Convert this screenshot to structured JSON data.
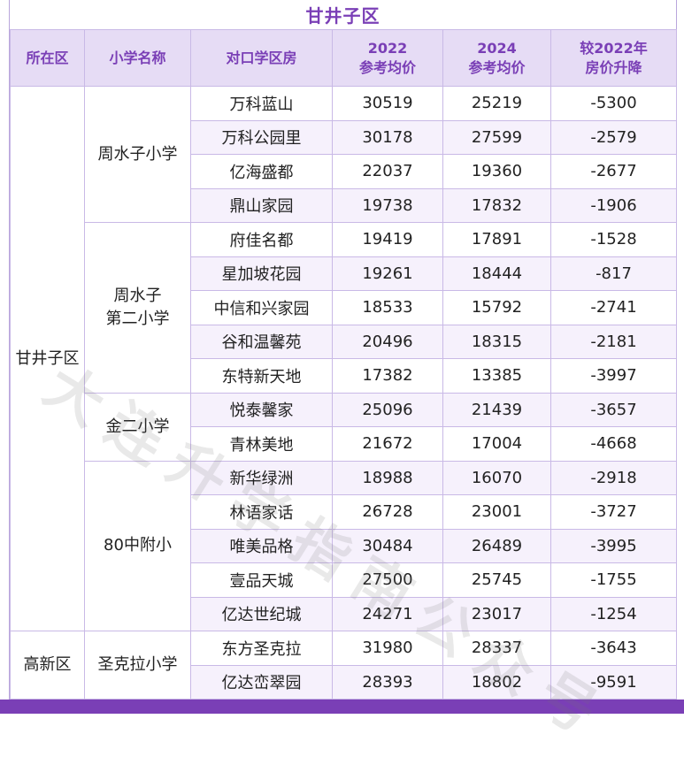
{
  "title": "甘井子区",
  "headers": [
    "所在区",
    "小学名称",
    "对口学区房",
    "2022\n参考均价",
    "2024\n参考均价",
    "较2022年\n房价升降"
  ],
  "watermark": "大连升学指南公众号",
  "colors": {
    "accent": "#7a3fb6",
    "header_bg": "#e6dcf5",
    "stripe": "#f6f1fc"
  },
  "groups": [
    {
      "district": "甘井子区",
      "schools": [
        {
          "name": "周水子小学",
          "rows": [
            [
              "万科蓝山",
              "30519",
              "25219",
              "-5300"
            ],
            [
              "万科公园里",
              "30178",
              "27599",
              "-2579"
            ],
            [
              "亿海盛都",
              "22037",
              "19360",
              "-2677"
            ],
            [
              "鼎山家园",
              "19738",
              "17832",
              "-1906"
            ]
          ]
        },
        {
          "name": "周水子\n第二小学",
          "rows": [
            [
              "府佳名都",
              "19419",
              "17891",
              "-1528"
            ],
            [
              "星加坡花园",
              "19261",
              "18444",
              "-817"
            ],
            [
              "中信和兴家园",
              "18533",
              "15792",
              "-2741"
            ],
            [
              "谷和温馨苑",
              "20496",
              "18315",
              "-2181"
            ],
            [
              "东特新天地",
              "17382",
              "13385",
              "-3997"
            ]
          ]
        },
        {
          "name": "金二小学",
          "rows": [
            [
              "悦泰馨家",
              "25096",
              "21439",
              "-3657"
            ],
            [
              "青林美地",
              "21672",
              "17004",
              "-4668"
            ]
          ]
        },
        {
          "name": "80中附小",
          "rows": [
            [
              "新华绿洲",
              "18988",
              "16070",
              "-2918"
            ],
            [
              "林语家话",
              "26728",
              "23001",
              "-3727"
            ],
            [
              "唯美品格",
              "30484",
              "26489",
              "-3995"
            ],
            [
              "壹品天城",
              "27500",
              "25745",
              "-1755"
            ],
            [
              "亿达世纪城",
              "24271",
              "23017",
              "-1254"
            ]
          ]
        }
      ]
    },
    {
      "district": "高新区",
      "schools": [
        {
          "name": "圣克拉小学",
          "rows": [
            [
              "东方圣克拉",
              "31980",
              "28337",
              "-3643"
            ],
            [
              "亿达峦翠园",
              "28393",
              "18802",
              "-9591"
            ]
          ]
        }
      ]
    }
  ]
}
